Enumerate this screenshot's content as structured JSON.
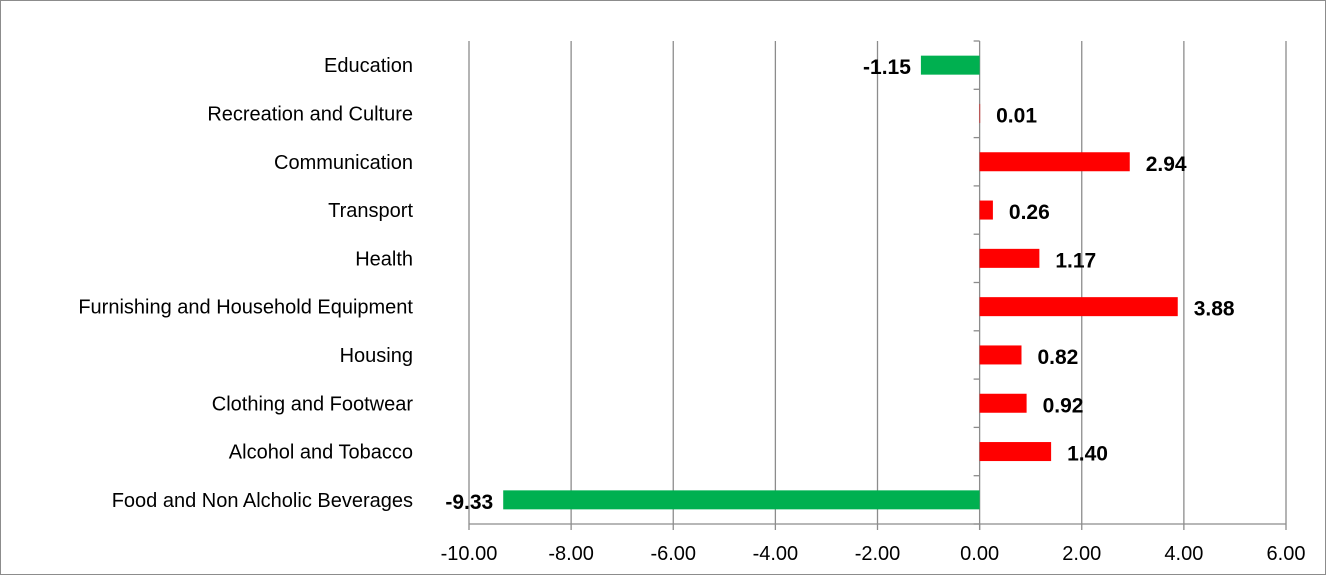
{
  "chart_data": {
    "type": "bar",
    "orientation": "horizontal",
    "categories": [
      "Education",
      "Recreation and Culture",
      "Communication",
      "Transport",
      "Health",
      "Furnishing and Household Equipment",
      "Housing",
      "Clothing and Footwear",
      "Alcohol and Tobacco",
      "Food and Non Alcholic Beverages"
    ],
    "values": [
      -1.15,
      0.01,
      2.94,
      0.26,
      1.17,
      3.88,
      0.82,
      0.92,
      1.4,
      -9.33
    ],
    "value_labels": [
      "-1.15",
      "0.01",
      "2.94",
      "0.26",
      "1.17",
      "3.88",
      "0.82",
      "0.92",
      "1.40",
      "-9.33"
    ],
    "xlim": [
      -10,
      6
    ],
    "x_ticks": [
      -10,
      -8,
      -6,
      -4,
      -2,
      0,
      2,
      4,
      6
    ],
    "x_tick_labels": [
      "-10.00",
      "-8.00",
      "-6.00",
      "-4.00",
      "-2.00",
      "0.00",
      "2.00",
      "4.00",
      "6.00"
    ],
    "grid": "vertical",
    "colors": {
      "positive": "#ff0000",
      "negative": "#00b050",
      "grid": "#8c8c8c",
      "axis": "#8c8c8c"
    },
    "title": "",
    "xlabel": "",
    "ylabel": ""
  }
}
